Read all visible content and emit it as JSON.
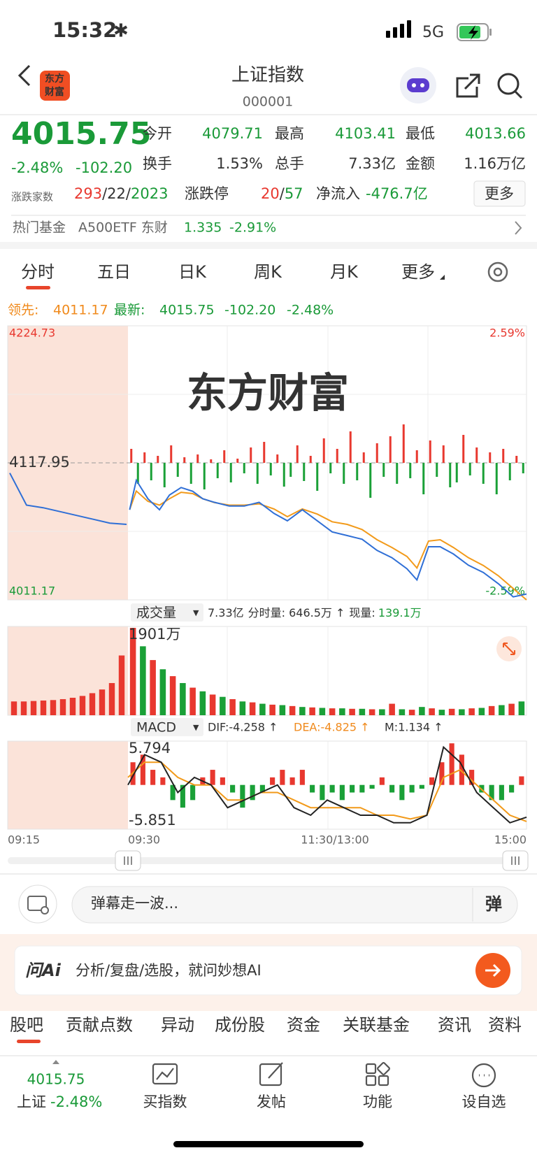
{
  "status_bar": {
    "time": "15:32",
    "network": "5G"
  },
  "header": {
    "title": "上证指数",
    "code": "000001",
    "logo": [
      "东方",
      "财富"
    ]
  },
  "quote": {
    "price": "4015.75",
    "change_pct": "-2.48%",
    "change": "-102.20",
    "stats": [
      {
        "label": "今开",
        "value": "4079.71"
      },
      {
        "label": "最高",
        "value": "4103.41"
      },
      {
        "label": "最低",
        "value": "4013.66"
      },
      {
        "label": "换手",
        "value": "1.53%"
      },
      {
        "label": "总手",
        "value": "7.33亿"
      },
      {
        "label": "金额",
        "value": "1.16万亿"
      }
    ],
    "breadth": {
      "label": "涨跌家数",
      "up": "293",
      "flat": "22",
      "down": "2023",
      "separator": "/"
    },
    "limit": {
      "label": "涨跌停",
      "up": "20",
      "down": "57"
    },
    "net_inflow": {
      "label": "净流入",
      "value": "-476.7亿"
    },
    "more": "更多"
  },
  "hot_fund": {
    "label": "热门基金",
    "name": "A500ETF 东财",
    "price": "1.335",
    "change": "-2.91%"
  },
  "tabs": [
    "分时",
    "五日",
    "日K",
    "周K",
    "月K",
    "更多"
  ],
  "leader_line": {
    "leader_label": "领先:",
    "leader": "4011.17",
    "latest_label": "最新:",
    "latest": "4015.75",
    "change": "-102.20",
    "change_pct": "-2.48%"
  },
  "chart": {
    "watermark": "东方财富",
    "ylim": [
      4011.17,
      4224.73
    ],
    "prev_close": 4117.95,
    "pct_top": "2.59%",
    "pct_bottom": "-2.59%",
    "xlim": [
      0,
      240
    ],
    "preopen": [
      4110,
      4085,
      4083,
      4080,
      4077,
      4074,
      4071,
      4070
    ],
    "price": {
      "minutes": [
        1,
        5,
        12,
        19,
        25,
        32,
        39,
        45,
        52,
        61,
        70,
        79,
        88,
        96,
        105,
        114,
        123,
        132,
        141,
        150,
        159,
        168,
        174,
        181,
        188,
        196,
        205,
        214,
        223,
        232,
        240
      ],
      "values": [
        4081.4,
        4104.4,
        4090.0,
        4081.4,
        4092.9,
        4098.7,
        4095.8,
        4090.0,
        4087.2,
        4084.3,
        4084.3,
        4087.2,
        4078.5,
        4072.8,
        4081.4,
        4072.8,
        4064.1,
        4061.3,
        4058.4,
        4049.7,
        4044.0,
        4035.4,
        4026.7,
        4052.6,
        4052.6,
        4046.9,
        4038.2,
        4032.5,
        4023.8,
        4013.5,
        4015.75
      ]
    },
    "average": {
      "minutes": [
        1,
        5,
        12,
        19,
        25,
        32,
        39,
        45,
        52,
        61,
        70,
        79,
        88,
        96,
        105,
        114,
        123,
        132,
        141,
        150,
        159,
        168,
        174,
        181,
        188,
        196,
        205,
        214,
        223,
        232,
        240
      ],
      "values": [
        4081.4,
        4096,
        4088,
        4085,
        4090,
        4095,
        4094,
        4090,
        4087,
        4085,
        4085,
        4086,
        4082,
        4076,
        4082,
        4078,
        4072,
        4070,
        4066,
        4058,
        4052,
        4045,
        4036,
        4057,
        4058,
        4052,
        4044,
        4038,
        4030,
        4020,
        4011.17
      ]
    },
    "flow": {
      "values": [
        20,
        -30,
        15,
        -25,
        10,
        -35,
        25,
        -20,
        8,
        -30,
        12,
        -38,
        5,
        -22,
        18,
        -28,
        6,
        -15,
        22,
        -30,
        30,
        -18,
        12,
        -34,
        -20,
        25,
        -26,
        10,
        -40,
        35,
        -15,
        20,
        -30,
        45,
        -25,
        15,
        -50,
        28,
        -20,
        38,
        -30,
        55,
        -22,
        18,
        -45,
        32,
        -20,
        25,
        -35,
        -28,
        40,
        -18,
        22,
        -30,
        15,
        -45,
        20,
        -25,
        10,
        -15
      ]
    },
    "volume": {
      "label": "成交量",
      "total": "7.33亿",
      "minute": "分时量: 646.5万 ↑",
      "current_label": "现量:",
      "current": "139.1万",
      "max_label": "1901万",
      "ylim": [
        0,
        1901
      ],
      "preopen": [
        300,
        300,
        310,
        320,
        330,
        350,
        380,
        420,
        480,
        560,
        700,
        1300
      ],
      "values": [
        1901,
        1500,
        1200,
        1000,
        850,
        700,
        600,
        520,
        450,
        400,
        350,
        300,
        280,
        250,
        230,
        220,
        200,
        180,
        170,
        160,
        150,
        150,
        140,
        140,
        130,
        130,
        250,
        130,
        120,
        180,
        150,
        120,
        140,
        130,
        150,
        160,
        200,
        220,
        250,
        300
      ]
    },
    "macd": {
      "label": "MACD",
      "dif_label": "DIF:-4.258 ↑",
      "dea_label": "DEA:-4.825 ↑",
      "m_label": "M:1.134 ↑",
      "ylim": [
        -5.851,
        5.794
      ],
      "hist": [
        3,
        4,
        2,
        1,
        -2,
        -3,
        -2,
        1,
        2,
        1,
        -1,
        -3,
        -2,
        -1,
        1,
        2,
        1,
        2,
        -1,
        -2,
        -1,
        -2,
        -1,
        -1,
        -0.5,
        1,
        -1,
        -2,
        -1,
        -0.5,
        1,
        3,
        5.5,
        4,
        2,
        -1,
        -2,
        -2,
        -1,
        1.134
      ],
      "dif": [
        0,
        4,
        3,
        -1,
        1,
        0,
        -3,
        -2,
        -1,
        0,
        -3,
        -4,
        -2,
        -3,
        -4,
        -4,
        -5,
        -5,
        -4,
        5,
        3,
        -1,
        -3,
        -5,
        -4.258
      ],
      "dea": [
        1,
        3,
        3,
        1,
        0,
        0,
        -2,
        -2,
        -1,
        -1,
        -2,
        -3,
        -3,
        -3,
        -3,
        -4,
        -4,
        -4.5,
        -4,
        1,
        2,
        0,
        -2,
        -4,
        -4.825
      ]
    },
    "times": [
      "09:15",
      "09:30",
      "11:30/13:00",
      "15:00"
    ]
  },
  "comment": {
    "placeholder": "弹幕走一波...",
    "button": "弹"
  },
  "ai_bar": {
    "brand": "问Ai",
    "prompt": "分析/复盘/选股，就问妙想AI"
  },
  "sub_tabs": [
    "股吧",
    "贡献点数",
    "异动",
    "成份股",
    "资金",
    "关联基金",
    "资讯",
    "资料"
  ],
  "bottom_bar": {
    "price": "4015.75",
    "name": "上证",
    "change": "-2.48%",
    "actions": [
      "买指数",
      "发帖",
      "功能",
      "设自选"
    ]
  }
}
